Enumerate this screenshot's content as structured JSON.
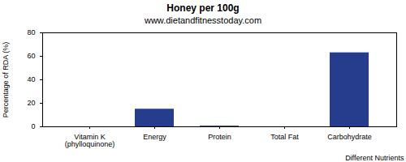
{
  "chart_data": {
    "type": "bar",
    "title": "Honey per 100g",
    "subtitle": "www.dietandfitnesstoday.com",
    "x_label": "Different Nutrients",
    "y_label": "Percentage of RDA (%)",
    "categories": [
      "Vitamin K (phylloquinone)",
      "Energy",
      "Protein",
      "Total Fat",
      "Carbohydrate"
    ],
    "values": [
      0,
      15,
      0.6,
      0,
      63
    ],
    "color": "#263d8e",
    "ylim": [
      0,
      80
    ],
    "yticks": [
      0,
      20,
      40,
      60,
      80
    ],
    "grid": false
  }
}
